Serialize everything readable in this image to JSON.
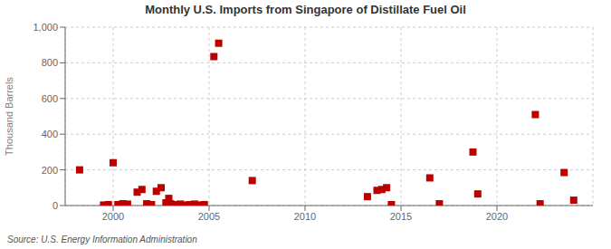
{
  "chart_data": {
    "type": "scatter",
    "title": "Monthly U.S. Imports from Singapore of Distillate Fuel Oil",
    "y_label": "Thousand Barrels",
    "annotations": [
      "Source: U.S. Energy Information Administration"
    ],
    "color": "#bb0000",
    "marker": "square",
    "grid": true,
    "xlim": [
      1997.5,
      2025.0
    ],
    "xticks": [
      2000,
      2005,
      2010,
      2015,
      2020
    ],
    "ylim": [
      0,
      1000
    ],
    "yticks": [
      0,
      200,
      400,
      600,
      800,
      {
        "value": 1000,
        "label": "1,000"
      }
    ],
    "x": [
      1998.25,
      1999.5,
      1999.75,
      2000.0,
      2000.25,
      2000.5,
      2000.75,
      2001.25,
      2001.5,
      2001.75,
      2002.0,
      2002.25,
      2002.5,
      2002.75,
      2002.9,
      2003.0,
      2003.25,
      2003.5,
      2003.75,
      2004.0,
      2004.25,
      2004.5,
      2004.75,
      2005.25,
      2005.5,
      2007.25,
      2013.25,
      2013.75,
      2014.0,
      2014.25,
      2014.5,
      2016.5,
      2017.0,
      2018.75,
      2019.0,
      2022.0,
      2022.25,
      2023.5,
      2024.0
    ],
    "values": [
      200,
      3,
      5,
      240,
      5,
      10,
      8,
      75,
      90,
      10,
      5,
      80,
      100,
      15,
      40,
      10,
      5,
      8,
      3,
      5,
      8,
      3,
      5,
      835,
      910,
      140,
      50,
      85,
      90,
      100,
      5,
      155,
      10,
      300,
      65,
      510,
      10,
      185,
      30
    ]
  }
}
